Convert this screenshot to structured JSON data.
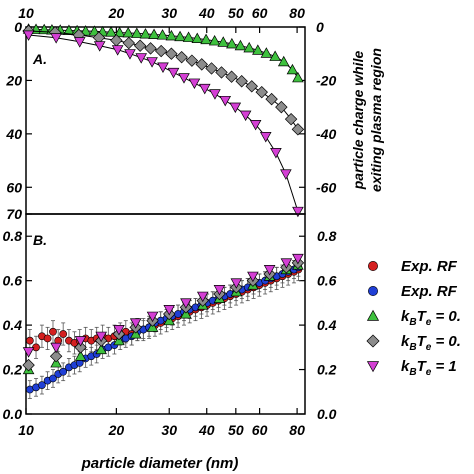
{
  "chart_data": [
    {
      "panel": "A.",
      "type": "scatter",
      "x_scale": "log",
      "xlim": [
        10,
        85
      ],
      "ylim": [
        0,
        -70
      ],
      "xticks_top": [
        "10",
        "20",
        "30",
        "40",
        "50",
        "60",
        "80"
      ],
      "xtick_values": [
        10,
        20,
        30,
        40,
        50,
        60,
        80
      ],
      "yticks_left": [
        "0",
        "20",
        "40",
        "60",
        "70"
      ],
      "yticks_right": [
        "0",
        "-20",
        "-40",
        "-60"
      ],
      "ylabel_right": [
        "particle charge while",
        "exiting plasma region"
      ],
      "series": [
        {
          "color": "#3ec13e",
          "marker": "triangle-up",
          "x": [
            10.2,
            10.8,
            11.5,
            12.2,
            13.0,
            13.9,
            14.8,
            15.8,
            16.9,
            18.0,
            19.2,
            20.5,
            21.9,
            23.4,
            25.0,
            26.7,
            28.5,
            30.5,
            32.6,
            34.8,
            37.2,
            39.8,
            42.5,
            45.4,
            48.5,
            51.8,
            55.4,
            59.2,
            63.2,
            67.6,
            72.2,
            77.2,
            80.5
          ],
          "y": [
            -0.8,
            -0.9,
            -1.0,
            -1.1,
            -1.2,
            -1.3,
            -1.4,
            -1.5,
            -1.6,
            -1.8,
            -1.9,
            -2.1,
            -2.2,
            -2.4,
            -2.6,
            -2.8,
            -3.0,
            -3.3,
            -3.6,
            -3.9,
            -4.3,
            -4.7,
            -5.2,
            -5.7,
            -6.3,
            -7.0,
            -7.8,
            -8.7,
            -9.8,
            -11.0,
            -13.0,
            -16.0,
            -19.0
          ]
        },
        {
          "color": "#8c8c8c",
          "marker": "diamond",
          "x": [
            10.2,
            12.5,
            15.0,
            17.5,
            20.0,
            22.0,
            24.0,
            26.0,
            28.2,
            30.5,
            33.0,
            35.7,
            38.5,
            41.5,
            44.8,
            48.4,
            52.3,
            56.5,
            61.0,
            65.8,
            70.9,
            76.4,
            80.5
          ],
          "y": [
            -1.5,
            -2.0,
            -3.0,
            -4.0,
            -5.0,
            -6.0,
            -7.0,
            -8.0,
            -9.0,
            -10.0,
            -11.3,
            -12.6,
            -14.0,
            -15.5,
            -17.0,
            -18.6,
            -20.3,
            -22.2,
            -24.4,
            -27.0,
            -30.0,
            -34.5,
            -38.3
          ]
        },
        {
          "color": "#d43fd4",
          "marker": "triangle-down",
          "x": [
            10.2,
            12.6,
            15.1,
            17.6,
            20.2,
            22.2,
            24.2,
            26.3,
            28.6,
            31.0,
            33.6,
            36.4,
            39.4,
            42.6,
            46.1,
            49.8,
            53.9,
            58.2,
            62.9,
            68.0,
            73.4,
            80.5
          ],
          "y": [
            -3.0,
            -4.0,
            -5.5,
            -7.0,
            -8.5,
            -10.0,
            -11.5,
            -13.0,
            -15.0,
            -17.0,
            -19.0,
            -21.0,
            -23.0,
            -25.0,
            -27.5,
            -30.0,
            -33.0,
            -36.5,
            -41.0,
            -47.0,
            -55.0,
            -69.0
          ]
        }
      ]
    },
    {
      "panel": "B.",
      "type": "scatter",
      "x_scale": "log",
      "xlim": [
        10,
        85
      ],
      "ylim": [
        0,
        0.9
      ],
      "xticks_bottom": [
        "10",
        "20",
        "30",
        "40",
        "50",
        "60",
        "80"
      ],
      "xtick_values": [
        10,
        20,
        30,
        40,
        50,
        60,
        80
      ],
      "xlabel": "particle diameter (nm)",
      "yticks_left": [
        "0.0",
        "0.2",
        "0.4",
        "0.6",
        "0.8"
      ],
      "yticks_right": [
        "0.0",
        "0.2",
        "0.4",
        "0.6",
        "0.8"
      ],
      "ytick_values": [
        0.0,
        0.2,
        0.4,
        0.6,
        0.8
      ],
      "series": [
        {
          "name": "Exp. RF",
          "color": "#d42020",
          "marker": "circle",
          "x": [
            10.3,
            10.8,
            11.3,
            11.8,
            12.3,
            12.8,
            13.3,
            13.9,
            14.5,
            15.1,
            15.8,
            16.5,
            17.2,
            18.0,
            18.8,
            19.7,
            20.6,
            21.5,
            22.5,
            23.5,
            24.6,
            25.7,
            26.9,
            28.1,
            29.4,
            30.7,
            32.1,
            33.6,
            35.1,
            36.7,
            38.4,
            40.1,
            41.9,
            43.8,
            45.8,
            47.9,
            50.1,
            52.4,
            54.8,
            57.3,
            59.9,
            62.6,
            65.4,
            68.4,
            71.5,
            74.7,
            78.1,
            80.8
          ],
          "y": [
            0.33,
            0.3,
            0.35,
            0.34,
            0.37,
            0.33,
            0.36,
            0.33,
            0.32,
            0.33,
            0.34,
            0.33,
            0.34,
            0.35,
            0.34,
            0.35,
            0.36,
            0.37,
            0.36,
            0.38,
            0.38,
            0.39,
            0.4,
            0.41,
            0.42,
            0.43,
            0.44,
            0.45,
            0.46,
            0.47,
            0.48,
            0.49,
            0.5,
            0.51,
            0.52,
            0.53,
            0.54,
            0.55,
            0.56,
            0.57,
            0.58,
            0.59,
            0.6,
            0.61,
            0.62,
            0.63,
            0.64,
            0.65
          ],
          "yerr": 0.05
        },
        {
          "name": "Exp. RF",
          "color": "#1f3fd6",
          "marker": "circle",
          "x": [
            10.3,
            10.8,
            11.3,
            11.8,
            12.3,
            12.8,
            13.3,
            13.9,
            14.5,
            15.1,
            15.8,
            16.5,
            17.2,
            18.0,
            18.8,
            19.7,
            20.6,
            21.5,
            22.5,
            23.5,
            24.6,
            25.7,
            26.9,
            28.1,
            29.4,
            30.7,
            32.1,
            33.6,
            35.1,
            36.7,
            38.4,
            40.1,
            41.9,
            43.8,
            45.8,
            47.9,
            50.1,
            52.4,
            54.8,
            57.3,
            59.9,
            62.6,
            65.4,
            68.4,
            71.5,
            74.7,
            78.1,
            80.8
          ],
          "y": [
            0.11,
            0.12,
            0.13,
            0.15,
            0.16,
            0.18,
            0.19,
            0.21,
            0.22,
            0.23,
            0.25,
            0.26,
            0.27,
            0.29,
            0.3,
            0.31,
            0.33,
            0.34,
            0.35,
            0.37,
            0.38,
            0.39,
            0.41,
            0.42,
            0.43,
            0.44,
            0.45,
            0.46,
            0.47,
            0.48,
            0.49,
            0.5,
            0.51,
            0.52,
            0.53,
            0.54,
            0.55,
            0.56,
            0.57,
            0.58,
            0.59,
            0.6,
            0.61,
            0.62,
            0.63,
            0.64,
            0.65,
            0.66
          ],
          "yerr": 0.04
        },
        {
          "name": "kBTe = 0.",
          "color": "#3ec13e",
          "marker": "triangle-up",
          "x": [
            10.2,
            12.6,
            15.2,
            17.8,
            20.4,
            23.2,
            26.4,
            30.0,
            34.1,
            38.8,
            44.1,
            50.2,
            57.0,
            64.8,
            73.7,
            80.5
          ],
          "y": [
            0.2,
            0.23,
            0.26,
            0.29,
            0.33,
            0.36,
            0.39,
            0.42,
            0.45,
            0.49,
            0.52,
            0.55,
            0.58,
            0.62,
            0.65,
            0.67
          ]
        },
        {
          "name": "kBTe = 0.",
          "color": "#8c8c8c",
          "marker": "diamond",
          "x": [
            10.2,
            12.6,
            15.2,
            17.8,
            20.4,
            23.2,
            26.4,
            30.0,
            34.1,
            38.8,
            44.1,
            50.2,
            57.0,
            64.8,
            73.7,
            80.5
          ],
          "y": [
            0.22,
            0.26,
            0.3,
            0.33,
            0.36,
            0.39,
            0.42,
            0.45,
            0.48,
            0.51,
            0.54,
            0.57,
            0.6,
            0.63,
            0.66,
            0.68
          ]
        },
        {
          "name": "kBTe = 1",
          "color": "#d43fd4",
          "marker": "triangle-down",
          "x": [
            10.2,
            12.6,
            15.2,
            17.8,
            20.4,
            23.2,
            26.4,
            30.0,
            34.1,
            38.8,
            44.1,
            50.2,
            57.0,
            64.8,
            73.7,
            80.5
          ],
          "y": [
            0.28,
            0.3,
            0.33,
            0.35,
            0.38,
            0.41,
            0.44,
            0.47,
            0.5,
            0.53,
            0.56,
            0.59,
            0.62,
            0.65,
            0.68,
            0.7
          ]
        }
      ],
      "legend": [
        {
          "base": "Exp. RF",
          "color": "#d42020",
          "marker": "circle"
        },
        {
          "base": "Exp. RF",
          "color": "#1f3fd6",
          "marker": "circle"
        },
        {
          "base": "k",
          "sub1": "B",
          "mid": "T",
          "sub2": "e",
          "tail": " = 0.",
          "color": "#3ec13e",
          "marker": "triangle-up"
        },
        {
          "base": "k",
          "sub1": "B",
          "mid": "T",
          "sub2": "e",
          "tail": " = 0.",
          "color": "#8c8c8c",
          "marker": "diamond"
        },
        {
          "base": "k",
          "sub1": "B",
          "mid": "T",
          "sub2": "e",
          "tail": " = 1",
          "color": "#d43fd4",
          "marker": "triangle-down"
        }
      ]
    }
  ]
}
